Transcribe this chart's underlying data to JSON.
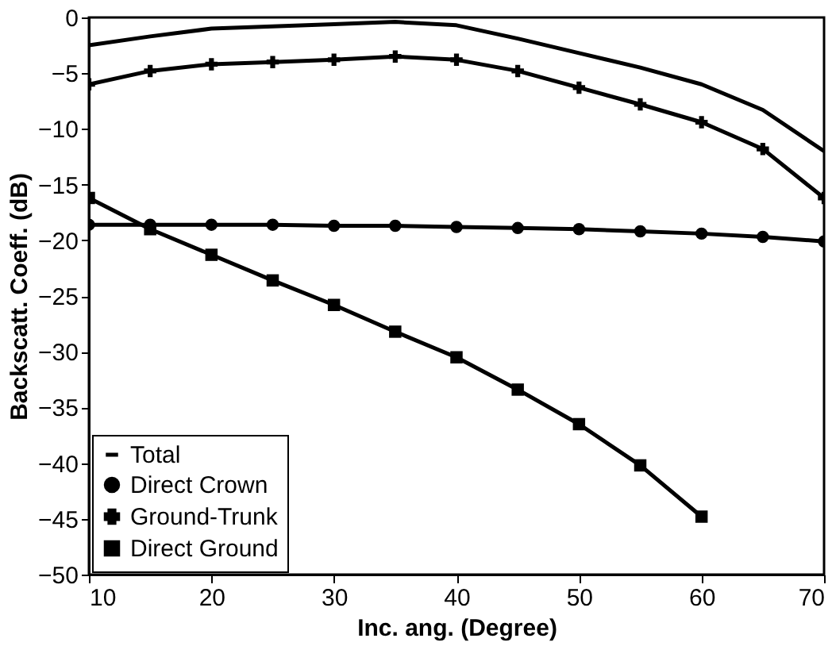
{
  "chart_data": {
    "type": "line",
    "xlabel": "Inc. ang. (Degree)",
    "ylabel": "Backscatt. Coeff. (dB)",
    "x": [
      10,
      15,
      20,
      25,
      30,
      35,
      40,
      45,
      50,
      55,
      60,
      65,
      70
    ],
    "xlim": [
      10,
      70
    ],
    "xticks": [
      10,
      20,
      30,
      40,
      50,
      60,
      70
    ],
    "ylim": [
      -50,
      0
    ],
    "yticks": [
      -50,
      -45,
      -40,
      -35,
      -30,
      -25,
      -20,
      -15,
      -10,
      -5,
      0
    ],
    "grid": false,
    "legend": "bottom left",
    "series": [
      {
        "name": "Total",
        "color": "#000000",
        "marker": "none",
        "values": [
          -2.5,
          -1.7,
          -1.0,
          -0.8,
          -0.6,
          -0.4,
          -0.7,
          -1.9,
          -3.2,
          -4.5,
          -6.0,
          -8.3,
          -12.0
        ]
      },
      {
        "name": "Direct Crown",
        "color": "#000000",
        "marker": "circle",
        "values": [
          -18.6,
          -18.6,
          -18.6,
          -18.6,
          -18.7,
          -18.7,
          -18.8,
          -18.9,
          -19.0,
          -19.2,
          -19.4,
          -19.7,
          -20.1
        ]
      },
      {
        "name": "Ground-Trunk",
        "color": "#000000",
        "marker": "cross",
        "values": [
          -6.0,
          -4.8,
          -4.2,
          -4.0,
          -3.8,
          -3.5,
          -3.8,
          -4.8,
          -6.3,
          -7.8,
          -9.4,
          -11.8,
          -16.2
        ]
      },
      {
        "name": "Direct Ground",
        "color": "#000000",
        "marker": "square",
        "values": [
          -16.2,
          -19.0,
          -21.3,
          -23.6,
          -25.8,
          -28.2,
          -30.5,
          -33.4,
          -36.5,
          -40.2,
          -44.8,
          null,
          null
        ]
      }
    ]
  }
}
